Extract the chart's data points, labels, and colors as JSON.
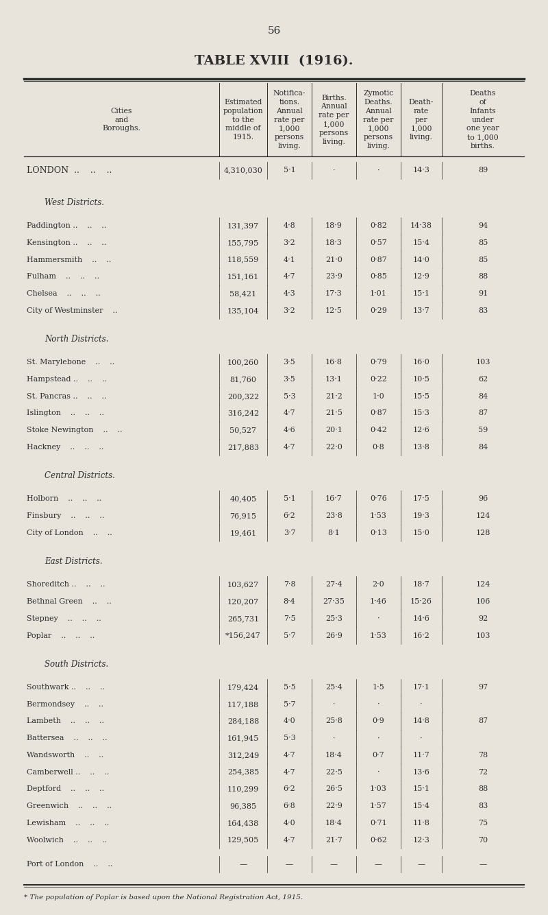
{
  "page_number": "56",
  "title": "TABLE XVIII  (1916).",
  "bg_color": "#e8e4dc",
  "text_color": "#2c2c2c",
  "col_headers_line1": [
    "Cities",
    "",
    "Notifica-",
    "Births.",
    "Zymotic",
    "Death-",
    "Deaths"
  ],
  "col_headers_line2": [
    "and",
    "Estimated",
    "tions.",
    "Annual",
    "Deaths.",
    "rate",
    "of"
  ],
  "col_headers": [
    "Cities\nand\nBoroughs.",
    "Estimated\npopulation\nto the\nmiddle of\n1915.",
    "Notifica-\ntions.\nAnnual\nrate per\n1,000\npersons\nliving.",
    "Births.\nAnnual\nrate per\n1,000\npersons\nliving.",
    "Zymotic\nDeaths.\nAnnual\nrate per\n1,000\npersons\nliving.",
    "Death-\nrate\nper\n1,000\nliving.",
    "Deaths\nof\nInfants\nunder\none year\nto 1,000\nbirths."
  ],
  "sections": [
    {
      "header": null,
      "rows": [
        [
          "LONDON  ..    ..    ..",
          "4,310,030",
          "5·1",
          "·",
          "·",
          "14·3",
          "89"
        ]
      ]
    },
    {
      "header": "West Districts.",
      "rows": [
        [
          "Paddington ..    ..    ..",
          "131,397",
          "4·8",
          "18·9",
          "0·82",
          "14·38",
          "94"
        ],
        [
          "Kensington ..    ..    ..",
          "155,795",
          "3·2",
          "18·3",
          "0·57",
          "15·4",
          "85"
        ],
        [
          "Hammersmith    ..    ..",
          "118,559",
          "4·1",
          "21·0",
          "0·87",
          "14·0",
          "85"
        ],
        [
          "Fulham    ..    ..    ..",
          "151,161",
          "4·7",
          "23·9",
          "0·85",
          "12·9",
          "88"
        ],
        [
          "Chelsea    ..    ..    ..",
          "58,421",
          "4·3",
          "17·3",
          "1·01",
          "15·1",
          "91"
        ],
        [
          "City of Westminster    ..",
          "135,104",
          "3·2",
          "12·5",
          "0·29",
          "13·7",
          "83"
        ]
      ]
    },
    {
      "header": "North Districts.",
      "rows": [
        [
          "St. Marylebone    ..    ..",
          "100,260",
          "3·5",
          "16·8",
          "0·79",
          "16·0",
          "103"
        ],
        [
          "Hampstead ..    ..    ..",
          "81,760",
          "3·5",
          "13·1",
          "0·22",
          "10·5",
          "62"
        ],
        [
          "St. Pancras ..    ..    ..",
          "200,322",
          "5·3",
          "21·2",
          "1·0",
          "15·5",
          "84"
        ],
        [
          "Islington    ..    ..    ..",
          "316,242",
          "4·7",
          "21·5",
          "0·87",
          "15·3",
          "87"
        ],
        [
          "Stoke Newington    ..    ..",
          "50,527",
          "4·6",
          "20·1",
          "0·42",
          "12·6",
          "59"
        ],
        [
          "Hackney    ..    ..    ..",
          "217,883",
          "4·7",
          "22·0",
          "0·8",
          "13·8",
          "84"
        ]
      ]
    },
    {
      "header": "Central Districts.",
      "rows": [
        [
          "Holborn    ..    ..    ..",
          "40,405",
          "5·1",
          "16·7",
          "0·76",
          "17·5",
          "96"
        ],
        [
          "Finsbury    ..    ..    ..",
          "76,915",
          "6·2",
          "23·8",
          "1·53",
          "19·3",
          "124"
        ],
        [
          "City of London    ..    ..",
          "19,461",
          "3·7",
          "8·1",
          "0·13",
          "15·0",
          "128"
        ]
      ]
    },
    {
      "header": "East Districts.",
      "rows": [
        [
          "Shoreditch ..    ..    ..",
          "103,627",
          "7·8",
          "27·4",
          "2·0",
          "18·7",
          "124"
        ],
        [
          "Bethnal Green    ..    ..",
          "120,207",
          "8·4",
          "27·35",
          "1·46",
          "15·26",
          "106"
        ],
        [
          "Stepney    ..    ..    ..",
          "265,731",
          "7·5",
          "25·3",
          "·",
          "14·6",
          "92"
        ],
        [
          "Poplar    ..    ..    ..",
          "*156,247",
          "5·7",
          "26·9",
          "1·53",
          "16·2",
          "103"
        ]
      ]
    },
    {
      "header": "South Districts.",
      "rows": [
        [
          "Southwark ..    ..    ..",
          "179,424",
          "5·5",
          "25·4",
          "1·5",
          "17·1",
          "97"
        ],
        [
          "Bermondsey    ..    ..",
          "117,188",
          "5·7",
          "·",
          "·",
          "·",
          ""
        ],
        [
          "Lambeth    ..    ..    ..",
          "284,188",
          "4·0",
          "25·8",
          "0·9",
          "14·8",
          "87"
        ],
        [
          "Battersea    ..    ..    ..",
          "161,945",
          "5·3",
          "·",
          "·",
          "·",
          ""
        ],
        [
          "Wandsworth    ..    ..",
          "312,249",
          "4·7",
          "18·4",
          "0·7",
          "11·7",
          "78"
        ],
        [
          "Camberwell ..    ..    ..",
          "254,385",
          "4·7",
          "22·5",
          "·",
          "13·6",
          "72"
        ],
        [
          "Deptford    ..    ..    ..",
          "110,299",
          "6·2",
          "26·5",
          "1·03",
          "15·1",
          "88"
        ],
        [
          "Greenwich    ..    ..    ..",
          "96,385",
          "6·8",
          "22·9",
          "1·57",
          "15·4",
          "83"
        ],
        [
          "Lewisham    ..    ..    ..",
          "164,438",
          "4·0",
          "18·4",
          "0·71",
          "11·8",
          "75"
        ],
        [
          "Woolwich    ..    ..    ..",
          "129,505",
          "4·7",
          "21·7",
          "0·62",
          "12·3",
          "70"
        ]
      ]
    },
    {
      "header": null,
      "rows": [
        [
          "Port of London    ..    ..",
          "—",
          "—",
          "—",
          "—",
          "—",
          "—"
        ]
      ]
    }
  ],
  "footnote": "* The population of Poplar is based upon the National Registration Act, 1915."
}
